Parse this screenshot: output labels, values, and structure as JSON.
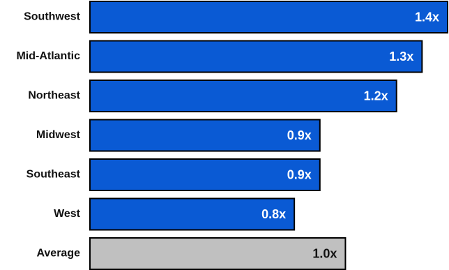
{
  "chart_data": {
    "type": "bar",
    "orientation": "horizontal",
    "categories": [
      "Southwest",
      "Mid-Atlantic",
      "Northeast",
      "Midwest",
      "Southeast",
      "West",
      "Average"
    ],
    "values": [
      1.4,
      1.3,
      1.2,
      0.9,
      0.9,
      0.8,
      1.0
    ],
    "value_labels": [
      "1.4x",
      "1.3x",
      "1.2x",
      "0.9x",
      "0.9x",
      "0.8x",
      "1.0x"
    ],
    "highlight": [
      "region",
      "region",
      "region",
      "region",
      "region",
      "region",
      "benchmark"
    ],
    "colors": {
      "region": "#0a5ad4",
      "benchmark": "#c0c0c0",
      "region_label": "#ffffff",
      "benchmark_label": "#111111",
      "outline": "#000000"
    },
    "xlim": [
      0,
      1.4
    ],
    "title": "",
    "xlabel": "",
    "ylabel": "",
    "grid": false,
    "legend": "none"
  }
}
